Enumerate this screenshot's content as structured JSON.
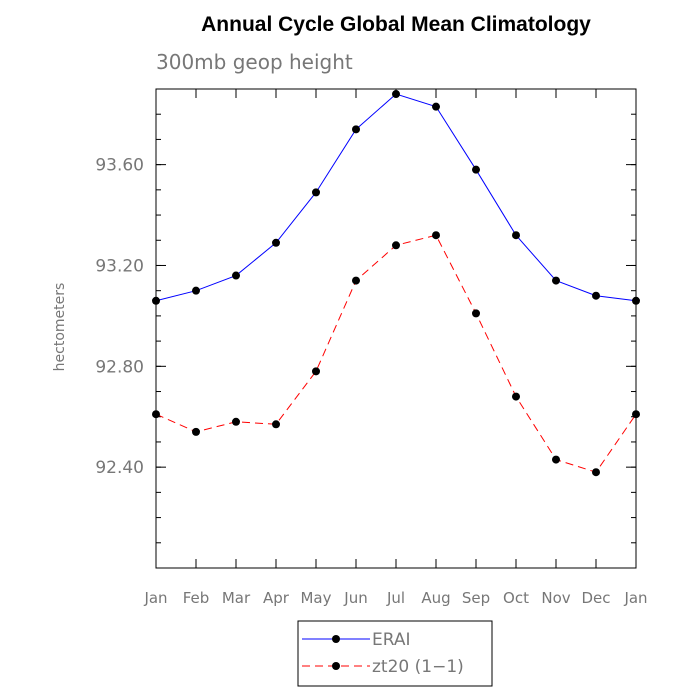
{
  "chart_data": {
    "type": "line",
    "title": "Annual Cycle Global Mean Climatology",
    "subtitle": "300mb geop height",
    "xlabel": "",
    "ylabel": "hectometers",
    "categories": [
      "Jan",
      "Feb",
      "Mar",
      "Apr",
      "May",
      "Jun",
      "Jul",
      "Aug",
      "Sep",
      "Oct",
      "Nov",
      "Dec",
      "Jan"
    ],
    "ylim": [
      92.0,
      93.9
    ],
    "yticks": [
      92.4,
      92.8,
      93.2,
      93.6
    ],
    "ytick_labels": [
      "92.40",
      "92.80",
      "93.20",
      "93.60"
    ],
    "minor_ytick_step": 0.1,
    "series": [
      {
        "name": "ERAI",
        "color": "#0000ff",
        "style": "solid",
        "marker": "filled-circle",
        "values": [
          93.06,
          93.1,
          93.16,
          93.29,
          93.49,
          93.74,
          93.88,
          93.83,
          93.58,
          93.32,
          93.14,
          93.08,
          93.06
        ]
      },
      {
        "name": "zt20 (1−1)",
        "color": "#ff0000",
        "style": "dashed",
        "marker": "filled-circle",
        "values": [
          92.61,
          92.54,
          92.58,
          92.57,
          92.78,
          93.14,
          93.28,
          93.32,
          93.01,
          92.68,
          92.43,
          92.38,
          92.61
        ]
      }
    ],
    "grid": false,
    "legend_position": "bottom-center"
  }
}
